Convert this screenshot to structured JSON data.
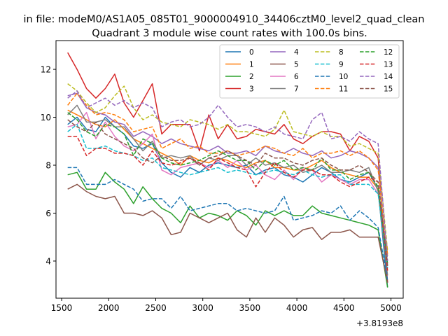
{
  "chart_data": {
    "type": "line",
    "suptitle": "in file: modeM0/AS1A05_085T01_9000004910_34406cztM0_level2_quad_clean",
    "title": "Quadrant 3 module wise count rates with 100.0s bins.",
    "xlabel": "",
    "ylabel": "",
    "x_offset_label": "+3.8193e8",
    "xlim": [
      1440,
      5130
    ],
    "ylim": [
      2.45,
      13.2
    ],
    "x_ticks": [
      1500,
      2000,
      2500,
      3000,
      3500,
      4000,
      4500,
      5000
    ],
    "y_ticks": [
      4,
      6,
      8,
      10,
      12
    ],
    "legend_position": "upper right",
    "legend_columns": 4,
    "x": [
      1564,
      1664,
      1764,
      1864,
      1964,
      2064,
      2164,
      2264,
      2364,
      2464,
      2564,
      2664,
      2764,
      2864,
      2964,
      3064,
      3164,
      3264,
      3364,
      3464,
      3564,
      3664,
      3764,
      3864,
      3964,
      4064,
      4164,
      4264,
      4364,
      4464,
      4564,
      4664,
      4764,
      4864,
      4964
    ],
    "series": [
      {
        "name": "0",
        "color": "#1f77b4",
        "style": "solid",
        "values": [
          9.7,
          10.0,
          9.5,
          9.4,
          10.0,
          9.6,
          9.3,
          8.8,
          8.7,
          8.9,
          8.1,
          7.7,
          7.5,
          7.9,
          7.7,
          8.0,
          8.1,
          8.0,
          7.9,
          8.0,
          7.6,
          7.8,
          7.9,
          7.6,
          7.5,
          7.3,
          7.6,
          7.9,
          7.7,
          7.4,
          7.3,
          7.5,
          7.7,
          7.0,
          2.9
        ]
      },
      {
        "name": "1",
        "color": "#ff7f0e",
        "style": "solid",
        "values": [
          10.3,
          10.1,
          9.9,
          9.7,
          9.6,
          9.9,
          9.5,
          9.1,
          8.9,
          8.7,
          8.5,
          8.3,
          8.0,
          8.4,
          8.2,
          8.1,
          8.3,
          8.2,
          8.0,
          7.9,
          8.1,
          8.2,
          7.9,
          7.9,
          7.8,
          7.8,
          8.0,
          8.2,
          7.9,
          7.7,
          7.6,
          7.5,
          7.5,
          7.0,
          4.3
        ]
      },
      {
        "name": "2",
        "color": "#2ca02c",
        "style": "solid",
        "values": [
          7.6,
          7.7,
          7.0,
          7.0,
          7.7,
          7.3,
          7.0,
          6.4,
          7.1,
          6.6,
          6.2,
          6.0,
          5.6,
          6.3,
          5.8,
          6.0,
          5.9,
          5.7,
          6.1,
          5.9,
          5.5,
          6.1,
          5.9,
          6.1,
          5.9,
          5.9,
          6.3,
          6.0,
          5.9,
          5.8,
          5.7,
          5.6,
          5.5,
          5.3,
          2.9
        ]
      },
      {
        "name": "3",
        "color": "#d62728",
        "style": "solid",
        "values": [
          12.7,
          12.0,
          11.2,
          10.8,
          11.2,
          11.8,
          10.6,
          10.0,
          10.7,
          11.4,
          9.3,
          9.7,
          9.7,
          9.7,
          8.6,
          10.1,
          9.1,
          9.7,
          9.1,
          9.2,
          9.5,
          9.4,
          9.3,
          9.7,
          9.1,
          8.9,
          9.2,
          9.4,
          9.4,
          9.3,
          8.6,
          9.2,
          9.0,
          8.3,
          3.1
        ]
      },
      {
        "name": "4",
        "color": "#9467bd",
        "style": "solid",
        "values": [
          10.9,
          11.0,
          10.4,
          10.2,
          10.1,
          9.8,
          9.7,
          9.2,
          9.4,
          9.2,
          8.9,
          9.1,
          8.9,
          8.8,
          8.7,
          8.6,
          8.8,
          8.5,
          8.5,
          8.6,
          8.4,
          8.8,
          8.6,
          8.5,
          8.7,
          8.5,
          8.4,
          8.6,
          8.3,
          8.4,
          8.6,
          8.5,
          8.3,
          7.9,
          3.8
        ]
      },
      {
        "name": "5",
        "color": "#8c564b",
        "style": "solid",
        "values": [
          7.0,
          7.2,
          6.9,
          6.7,
          6.6,
          6.7,
          6.0,
          6.0,
          5.9,
          6.1,
          5.8,
          5.1,
          5.2,
          6.0,
          5.8,
          5.6,
          5.8,
          6.0,
          5.3,
          5.0,
          5.8,
          5.2,
          5.8,
          5.5,
          5.0,
          5.3,
          5.4,
          4.9,
          5.2,
          5.2,
          5.3,
          5.0,
          5.0,
          5.0,
          3.1
        ]
      },
      {
        "name": "6",
        "color": "#e377c2",
        "style": "solid",
        "values": [
          9.6,
          9.7,
          10.2,
          9.1,
          9.8,
          9.2,
          8.8,
          8.6,
          8.9,
          9.3,
          7.8,
          7.6,
          7.9,
          8.0,
          8.1,
          7.9,
          8.2,
          7.9,
          8.2,
          7.8,
          8.0,
          7.6,
          7.4,
          7.8,
          7.4,
          7.9,
          7.8,
          7.3,
          7.6,
          7.4,
          7.2,
          7.4,
          7.4,
          6.8,
          4.5
        ]
      },
      {
        "name": "7",
        "color": "#7f7f7f",
        "style": "solid",
        "values": [
          10.1,
          10.5,
          9.8,
          9.8,
          9.9,
          9.6,
          9.6,
          9.1,
          8.6,
          9.0,
          8.3,
          8.4,
          8.3,
          8.4,
          8.0,
          8.3,
          8.2,
          8.4,
          8.4,
          8.0,
          8.3,
          8.0,
          8.1,
          7.9,
          8.0,
          7.7,
          7.8,
          8.0,
          7.7,
          7.7,
          7.8,
          7.7,
          7.9,
          6.9,
          3.4
        ]
      },
      {
        "name": "8",
        "color": "#bcbd22",
        "style": "dashed",
        "values": [
          11.4,
          11.1,
          10.6,
          10.2,
          10.4,
          10.9,
          11.3,
          10.4,
          9.9,
          10.1,
          9.8,
          9.7,
          9.6,
          9.9,
          9.8,
          9.7,
          9.5,
          9.7,
          9.4,
          9.4,
          9.3,
          9.2,
          9.5,
          10.3,
          9.4,
          9.3,
          9.2,
          9.4,
          9.2,
          9.2,
          8.8,
          8.9,
          8.7,
          8.5,
          4.4
        ]
      },
      {
        "name": "9",
        "color": "#17becf",
        "style": "dashed",
        "values": [
          9.4,
          9.7,
          8.7,
          8.7,
          8.8,
          8.6,
          8.5,
          8.4,
          8.2,
          8.3,
          7.9,
          7.8,
          7.7,
          7.6,
          7.7,
          7.8,
          7.9,
          7.7,
          7.8,
          7.7,
          7.6,
          7.7,
          7.8,
          7.7,
          7.6,
          7.8,
          7.6,
          7.5,
          7.6,
          7.6,
          7.2,
          7.2,
          7.2,
          6.8,
          3.7
        ]
      },
      {
        "name": "10",
        "color": "#1f77b4",
        "style": "dashed",
        "values": [
          7.9,
          7.9,
          7.2,
          7.2,
          7.2,
          7.4,
          7.2,
          7.0,
          6.5,
          6.6,
          6.6,
          6.2,
          6.7,
          6.1,
          6.2,
          6.3,
          6.4,
          6.4,
          6.1,
          6.2,
          6.1,
          6.0,
          6.1,
          6.7,
          5.7,
          5.8,
          5.9,
          6.1,
          6.0,
          6.3,
          5.7,
          6.1,
          5.8,
          5.4,
          3.2
        ]
      },
      {
        "name": "11",
        "color": "#ff7f0e",
        "style": "dashed",
        "values": [
          10.5,
          11.0,
          10.5,
          10.1,
          10.2,
          10.1,
          9.9,
          9.4,
          9.5,
          9.6,
          8.7,
          8.9,
          9.1,
          8.7,
          8.8,
          8.5,
          8.5,
          8.6,
          8.4,
          8.5,
          8.6,
          8.8,
          8.7,
          8.5,
          8.4,
          8.7,
          8.3,
          8.5,
          8.5,
          8.6,
          8.4,
          8.6,
          8.3,
          7.8,
          4.2
        ]
      },
      {
        "name": "12",
        "color": "#2ca02c",
        "style": "dashed",
        "values": [
          10.2,
          9.9,
          9.4,
          9.2,
          9.7,
          9.6,
          9.3,
          8.4,
          9.1,
          8.9,
          8.3,
          8.1,
          8.0,
          8.1,
          8.2,
          8.4,
          8.6,
          8.4,
          8.2,
          8.2,
          7.8,
          8.2,
          8.0,
          8.2,
          7.8,
          7.9,
          7.8,
          8.3,
          7.8,
          7.8,
          7.4,
          7.6,
          7.7,
          7.1,
          3.9
        ]
      },
      {
        "name": "13",
        "color": "#d62728",
        "style": "dashed",
        "values": [
          9.2,
          9.2,
          8.4,
          8.7,
          8.7,
          8.5,
          8.5,
          8.4,
          8.0,
          8.6,
          8.1,
          8.0,
          8.1,
          8.3,
          8.1,
          7.8,
          8.3,
          8.1,
          7.9,
          7.8,
          7.1,
          7.7,
          8.1,
          7.7,
          7.5,
          7.8,
          7.8,
          7.6,
          7.6,
          7.3,
          7.1,
          7.3,
          7.5,
          7.3,
          3.6
        ]
      },
      {
        "name": "14",
        "color": "#9467bd",
        "style": "dashed",
        "values": [
          10.8,
          11.1,
          10.4,
          10.6,
          10.8,
          10.5,
          10.7,
          10.4,
          10.6,
          10.4,
          9.6,
          9.8,
          9.9,
          9.6,
          9.7,
          10.0,
          10.5,
          10.0,
          9.6,
          9.7,
          9.6,
          9.4,
          9.6,
          9.3,
          9.2,
          9.1,
          9.9,
          10.2,
          9.1,
          9.2,
          9.0,
          9.4,
          9.1,
          8.9,
          4.0
        ]
      },
      {
        "name": "15",
        "color": "#8c564b",
        "style": "dashed",
        "values": [
          9.9,
          9.6,
          9.4,
          9.8,
          9.3,
          9.1,
          8.9,
          8.7,
          8.3,
          8.1,
          8.4,
          8.2,
          8.2,
          8.3,
          8.0,
          8.3,
          8.4,
          8.6,
          8.4,
          8.2,
          8.0,
          8.5,
          8.3,
          8.3,
          8.1,
          8.0,
          8.2,
          8.3,
          8.0,
          7.8,
          7.8,
          8.0,
          7.7,
          7.3,
          3.8
        ]
      }
    ]
  }
}
